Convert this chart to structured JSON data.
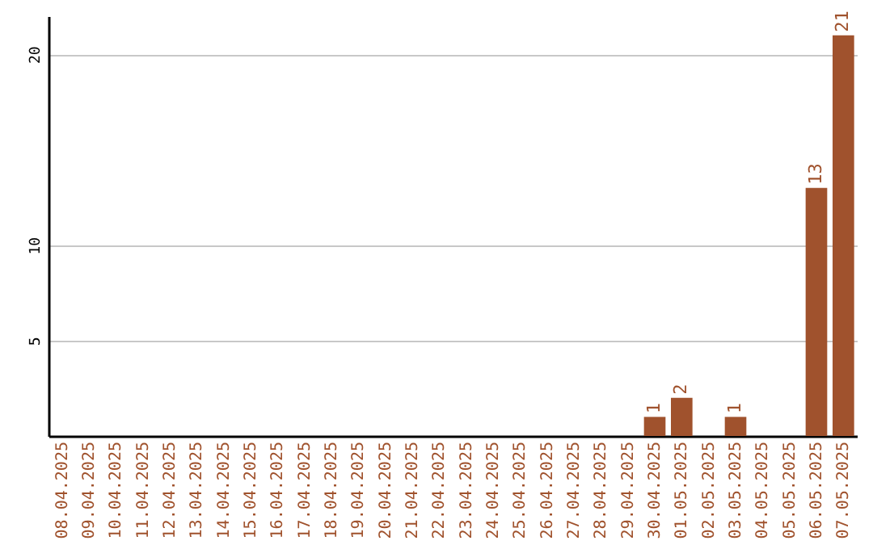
{
  "chart_data": {
    "type": "bar",
    "categories": [
      "08.04.2025",
      "09.04.2025",
      "10.04.2025",
      "11.04.2025",
      "12.04.2025",
      "13.04.2025",
      "14.04.2025",
      "15.04.2025",
      "16.04.2025",
      "17.04.2025",
      "18.04.2025",
      "19.04.2025",
      "20.04.2025",
      "21.04.2025",
      "22.04.2025",
      "23.04.2025",
      "24.04.2025",
      "25.04.2025",
      "26.04.2025",
      "27.04.2025",
      "28.04.2025",
      "29.04.2025",
      "30.04.2025",
      "01.05.2025",
      "02.05.2025",
      "03.05.2025",
      "04.05.2025",
      "05.05.2025",
      "06.05.2025",
      "07.05.2025"
    ],
    "values": [
      0,
      0,
      0,
      0,
      0,
      0,
      0,
      0,
      0,
      0,
      0,
      0,
      0,
      0,
      0,
      0,
      0,
      0,
      0,
      0,
      0,
      0,
      1,
      2,
      0,
      1,
      0,
      0,
      13,
      21
    ],
    "value_labels": [
      null,
      null,
      null,
      null,
      null,
      null,
      null,
      null,
      null,
      null,
      null,
      null,
      null,
      null,
      null,
      null,
      null,
      null,
      null,
      null,
      null,
      null,
      "1",
      "2",
      null,
      "1",
      null,
      null,
      "13",
      "21"
    ],
    "color": "#a0522d",
    "ylim": [
      0,
      22
    ],
    "yticks": [
      5,
      10,
      20
    ],
    "grid": "y"
  }
}
